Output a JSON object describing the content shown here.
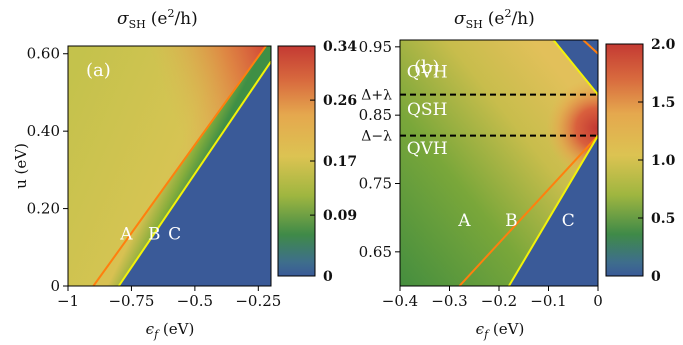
{
  "chart_data": [
    {
      "type": "heatmap",
      "title": "σSH (e²/h)",
      "title_parts": {
        "symbol": "σ",
        "sub": "SH",
        "unit": "(e",
        "sup": "2",
        "unit_end": "/h)"
      },
      "panel_label": "(a)",
      "xlabel": "ϵ_f (eV)",
      "xlabel_parts": {
        "symbol": "ϵ",
        "sub": "f",
        "unit": " (eV)"
      },
      "ylabel": "u (eV)",
      "xlim": [
        -1.0,
        -0.2
      ],
      "ylim": [
        0.0,
        0.62
      ],
      "xticks": [
        -1.0,
        -0.75,
        -0.5,
        -0.25
      ],
      "xtick_labels": [
        "−1",
        "−0.75",
        "−0.5",
        "−0.25"
      ],
      "yticks": [
        0.0,
        0.2,
        0.4,
        0.6
      ],
      "ytick_labels": [
        "0",
        "0.20",
        "0.40",
        "0.60"
      ],
      "colorbar": {
        "range": [
          0,
          0.34
        ],
        "ticks": [
          0,
          0.09,
          0.17,
          0.26,
          0.34
        ],
        "tick_labels": [
          "0",
          "0.09",
          "0.17",
          "0.26",
          "0.34"
        ]
      },
      "boundary_lines": [
        {
          "name": "orange",
          "color": "#ff7f0e",
          "points": [
            [
              -0.9,
              0.0
            ],
            [
              -0.22,
              0.62
            ]
          ]
        },
        {
          "name": "yellow",
          "color": "#f2f20a",
          "points": [
            [
              -0.8,
              0.0
            ],
            [
              -0.2,
              0.58
            ]
          ]
        }
      ],
      "region_labels": [
        {
          "text": "A",
          "x": -0.77,
          "y": 0.12
        },
        {
          "text": "B",
          "x": -0.66,
          "y": 0.12
        },
        {
          "text": "C",
          "x": -0.58,
          "y": 0.12
        }
      ]
    },
    {
      "type": "heatmap",
      "title": "σSH (e²/h)",
      "title_parts": {
        "symbol": "σ",
        "sub": "SH",
        "unit": "(e",
        "sup": "2",
        "unit_end": "/h)"
      },
      "panel_label": "(b)",
      "xlabel": "ϵ_f (eV)",
      "xlabel_parts": {
        "symbol": "ϵ",
        "sub": "f",
        "unit": " (eV)"
      },
      "ylabel": "",
      "xlim": [
        -0.4,
        0.0
      ],
      "ylim": [
        0.6,
        0.96
      ],
      "xticks": [
        -0.4,
        -0.3,
        -0.2,
        -0.1,
        0.0
      ],
      "xtick_labels": [
        "−0.4",
        "−0.3",
        "−0.2",
        "−0.1",
        "0"
      ],
      "yticks": [
        0.65,
        0.75,
        0.85,
        0.95
      ],
      "ytick_labels": [
        "0.65",
        "0.75",
        "0.85",
        "0.95"
      ],
      "colorbar": {
        "range": [
          0,
          2.0
        ],
        "ticks": [
          0,
          0.5,
          1.0,
          1.5,
          2.0
        ],
        "tick_labels": [
          "0",
          "0.5",
          "1.0",
          "1.5",
          "2.0"
        ]
      },
      "dashed_levels": [
        {
          "label": "Δ+λ",
          "y": 0.88
        },
        {
          "label": "Δ−λ",
          "y": 0.82
        }
      ],
      "boundary_lines": [
        {
          "name": "orange-low",
          "color": "#ff7f0e",
          "points": [
            [
              -0.28,
              0.6
            ],
            [
              0.0,
              0.82
            ]
          ]
        },
        {
          "name": "orange-high",
          "color": "#ff7f0e",
          "points": [
            [
              -0.03,
              0.96
            ],
            [
              0.0,
              0.94
            ]
          ]
        },
        {
          "name": "yellow-low",
          "color": "#f2f20a",
          "points": [
            [
              -0.18,
              0.6
            ],
            [
              0.0,
              0.82
            ]
          ]
        },
        {
          "name": "yellow-high",
          "color": "#f2f20a",
          "points": [
            [
              -0.09,
              0.96
            ],
            [
              0.0,
              0.88
            ]
          ]
        }
      ],
      "region_labels": [
        {
          "text": "QVH",
          "x": -0.345,
          "y": 0.905
        },
        {
          "text": "QSH",
          "x": -0.345,
          "y": 0.85
        },
        {
          "text": "QVH",
          "x": -0.345,
          "y": 0.793
        },
        {
          "text": "A",
          "x": -0.27,
          "y": 0.688
        },
        {
          "text": "B",
          "x": -0.175,
          "y": 0.688
        },
        {
          "text": "C",
          "x": -0.06,
          "y": 0.688
        }
      ]
    }
  ]
}
